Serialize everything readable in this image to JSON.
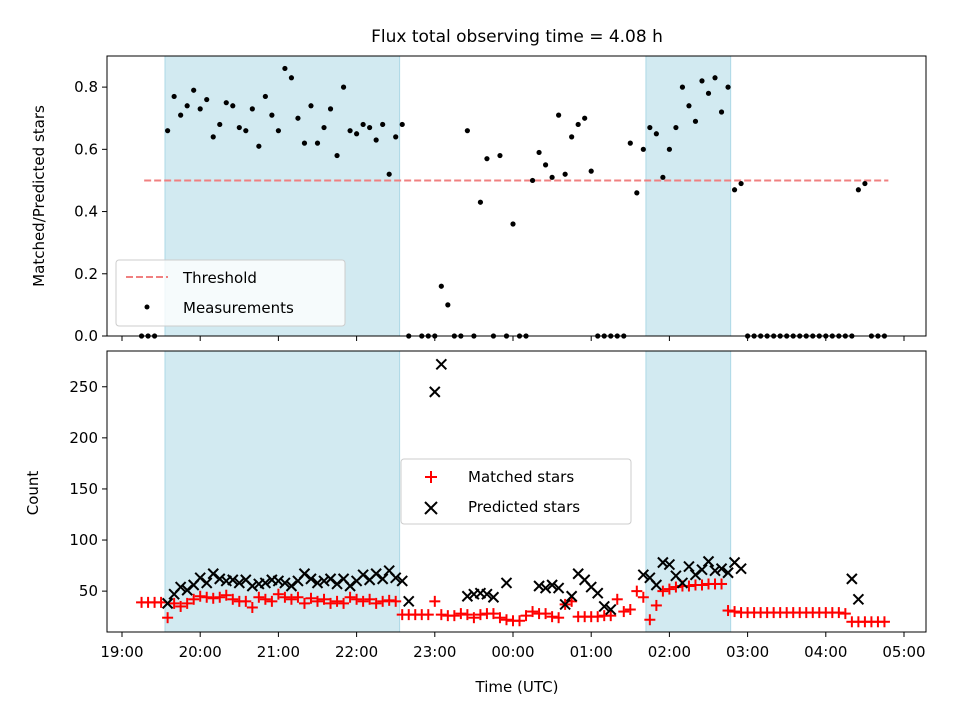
{
  "title": "Flux total observing time = 4.08 h",
  "colors": {
    "threshold": "#f08080",
    "matched": "#ff0000",
    "predicted": "#000000",
    "measurements": "#000000",
    "shade": "#add8e6"
  },
  "chart_data": [
    {
      "type": "scatter",
      "ylabel": "Matched/Predicted stars",
      "ylim": [
        0,
        0.9
      ],
      "xlim": [
        "19:00",
        "05:00"
      ],
      "yticks": [
        "0.0",
        "0.2",
        "0.4",
        "0.6",
        "0.8"
      ],
      "grid": false,
      "legend_position": "lower-left",
      "shaded_intervals": [
        [
          "19:33",
          "22:33"
        ],
        [
          "01:42",
          "02:47"
        ]
      ],
      "threshold": {
        "name": "Threshold",
        "value": 0.5,
        "x_start": "19:17",
        "x_end": "04:48"
      },
      "series": [
        {
          "name": "Measurements",
          "x": [
            "19:15",
            "19:20",
            "19:25",
            "19:35",
            "19:40",
            "19:45",
            "19:50",
            "19:55",
            "20:00",
            "20:05",
            "20:10",
            "20:15",
            "20:20",
            "20:25",
            "20:30",
            "20:35",
            "20:40",
            "20:45",
            "20:50",
            "20:55",
            "21:00",
            "21:05",
            "21:10",
            "21:15",
            "21:20",
            "21:25",
            "21:30",
            "21:35",
            "21:40",
            "21:45",
            "21:50",
            "21:55",
            "22:00",
            "22:05",
            "22:10",
            "22:15",
            "22:20",
            "22:25",
            "22:30",
            "22:35",
            "22:40",
            "22:50",
            "22:55",
            "23:00",
            "23:05",
            "23:10",
            "23:15",
            "23:20",
            "23:25",
            "23:30",
            "23:35",
            "23:40",
            "23:45",
            "23:50",
            "23:55",
            "00:00",
            "00:05",
            "00:10",
            "00:15",
            "00:20",
            "00:25",
            "00:30",
            "00:35",
            "00:40",
            "00:45",
            "00:50",
            "00:55",
            "01:00",
            "01:05",
            "01:10",
            "01:15",
            "01:20",
            "01:25",
            "01:30",
            "01:35",
            "01:40",
            "01:45",
            "01:50",
            "01:55",
            "02:00",
            "02:05",
            "02:10",
            "02:15",
            "02:20",
            "02:25",
            "02:30",
            "02:35",
            "02:40",
            "02:45",
            "02:50",
            "02:55",
            "03:00",
            "03:05",
            "03:10",
            "03:15",
            "03:20",
            "03:25",
            "03:30",
            "03:35",
            "03:40",
            "03:45",
            "03:50",
            "03:55",
            "04:00",
            "04:05",
            "04:10",
            "04:15",
            "04:20",
            "04:25",
            "04:30",
            "04:35",
            "04:40",
            "04:45"
          ],
          "y": [
            0,
            0,
            0,
            0.66,
            0.77,
            0.71,
            0.74,
            0.79,
            0.73,
            0.76,
            0.64,
            0.68,
            0.75,
            0.74,
            0.67,
            0.66,
            0.73,
            0.61,
            0.77,
            0.71,
            0.66,
            0.86,
            0.83,
            0.7,
            0.62,
            0.74,
            0.62,
            0.67,
            0.73,
            0.58,
            0.8,
            0.66,
            0.65,
            0.68,
            0.67,
            0.63,
            0.68,
            0.52,
            0.64,
            0.68,
            0,
            0,
            0,
            0,
            0.16,
            0.1,
            0,
            0,
            0.66,
            0,
            0.43,
            0.57,
            0,
            0.58,
            0,
            0.36,
            0,
            0,
            0.5,
            0.59,
            0.55,
            0.51,
            0.71,
            0.52,
            0.64,
            0.68,
            0.7,
            0.53,
            0,
            0,
            0,
            0,
            0,
            0.62,
            0.46,
            0.6,
            0.67,
            0.65,
            0.51,
            0.6,
            0.67,
            0.8,
            0.74,
            0.69,
            0.82,
            0.78,
            0.83,
            0.72,
            0.8,
            0.47,
            0.49,
            0,
            0,
            0,
            0,
            0,
            0,
            0,
            0,
            0,
            0,
            0,
            0,
            0,
            0,
            0,
            0,
            0,
            0.47,
            0.49,
            0,
            0,
            0
          ]
        }
      ]
    },
    {
      "type": "scatter",
      "xlabel": "Time (UTC)",
      "ylabel": "Count",
      "ylim": [
        10,
        285
      ],
      "xlim": [
        "19:00",
        "05:00"
      ],
      "xticks": [
        "19:00",
        "20:00",
        "21:00",
        "22:00",
        "23:00",
        "00:00",
        "01:00",
        "02:00",
        "03:00",
        "04:00",
        "05:00"
      ],
      "yticks": [
        "50",
        "100",
        "150",
        "200",
        "250"
      ],
      "grid": false,
      "legend_position": "center",
      "shaded_intervals": [
        [
          "19:33",
          "22:33"
        ],
        [
          "01:42",
          "02:47"
        ]
      ],
      "series": [
        {
          "name": "Matched stars",
          "x": [
            "19:15",
            "19:20",
            "19:25",
            "19:30",
            "19:35",
            "19:40",
            "19:45",
            "19:50",
            "19:55",
            "20:00",
            "20:05",
            "20:10",
            "20:15",
            "20:20",
            "20:25",
            "20:30",
            "20:35",
            "20:40",
            "20:45",
            "20:50",
            "20:55",
            "21:00",
            "21:05",
            "21:10",
            "21:15",
            "21:20",
            "21:25",
            "21:30",
            "21:35",
            "21:40",
            "21:45",
            "21:50",
            "21:55",
            "22:00",
            "22:05",
            "22:10",
            "22:15",
            "22:20",
            "22:25",
            "22:30",
            "22:35",
            "22:40",
            "22:45",
            "22:50",
            "22:55",
            "23:00",
            "23:05",
            "23:10",
            "23:15",
            "23:20",
            "23:25",
            "23:30",
            "23:35",
            "23:40",
            "23:45",
            "23:50",
            "23:55",
            "00:00",
            "00:05",
            "00:10",
            "00:15",
            "00:20",
            "00:25",
            "00:30",
            "00:35",
            "00:40",
            "00:45",
            "00:50",
            "00:55",
            "01:00",
            "01:05",
            "01:10",
            "01:15",
            "01:20",
            "01:25",
            "01:30",
            "01:35",
            "01:40",
            "01:45",
            "01:50",
            "01:55",
            "02:00",
            "02:05",
            "02:10",
            "02:15",
            "02:20",
            "02:25",
            "02:30",
            "02:35",
            "02:40",
            "02:45",
            "02:50",
            "02:55",
            "03:00",
            "03:05",
            "03:10",
            "03:15",
            "03:20",
            "03:25",
            "03:30",
            "03:35",
            "03:40",
            "03:45",
            "03:50",
            "03:55",
            "04:00",
            "04:05",
            "04:10",
            "04:15",
            "04:20",
            "04:25",
            "04:30",
            "04:35",
            "04:40",
            "04:45"
          ],
          "y": [
            39,
            39,
            39,
            39,
            24,
            38,
            35,
            38,
            42,
            45,
            44,
            43,
            44,
            46,
            42,
            40,
            40,
            34,
            44,
            42,
            40,
            47,
            44,
            42,
            44,
            38,
            43,
            40,
            42,
            38,
            40,
            38,
            44,
            42,
            40,
            42,
            38,
            40,
            41,
            40,
            27,
            27,
            27,
            27,
            27,
            40,
            27,
            26,
            26,
            28,
            27,
            24,
            27,
            28,
            28,
            24,
            22,
            21,
            21,
            26,
            30,
            28,
            28,
            25,
            24,
            37,
            40,
            25,
            25,
            25,
            25,
            26,
            26,
            42,
            30,
            32,
            50,
            44,
            22,
            36,
            50,
            52,
            54,
            55,
            55,
            56,
            56,
            57,
            57,
            57,
            31,
            30,
            29,
            29,
            29,
            29,
            29,
            29,
            29,
            29,
            29,
            29,
            29,
            29,
            29,
            29,
            29,
            29,
            28,
            20,
            20,
            20,
            20,
            20,
            20
          ]
        },
        {
          "name": "Predicted stars",
          "x": [
            "19:35",
            "19:40",
            "19:45",
            "19:50",
            "19:55",
            "20:00",
            "20:05",
            "20:10",
            "20:15",
            "20:20",
            "20:25",
            "20:30",
            "20:35",
            "20:40",
            "20:45",
            "20:50",
            "20:55",
            "21:00",
            "21:05",
            "21:10",
            "21:15",
            "21:20",
            "21:25",
            "21:30",
            "21:35",
            "21:40",
            "21:45",
            "21:50",
            "21:55",
            "22:00",
            "22:05",
            "22:10",
            "22:15",
            "22:20",
            "22:25",
            "22:30",
            "22:35",
            "22:40",
            "23:00",
            "23:05",
            "23:25",
            "23:30",
            "23:35",
            "23:40",
            "23:45",
            "23:55",
            "00:20",
            "00:25",
            "00:30",
            "00:35",
            "00:40",
            "00:45",
            "00:50",
            "00:55",
            "01:00",
            "01:05",
            "01:10",
            "01:15",
            "01:40",
            "01:45",
            "01:50",
            "01:55",
            "02:00",
            "02:05",
            "02:10",
            "02:15",
            "02:20",
            "02:25",
            "02:30",
            "02:35",
            "02:40",
            "02:45",
            "02:50",
            "02:55",
            "04:20",
            "04:25"
          ],
          "y": [
            38,
            47,
            54,
            51,
            56,
            63,
            58,
            67,
            62,
            60,
            61,
            58,
            61,
            55,
            57,
            58,
            61,
            60,
            58,
            55,
            60,
            67,
            62,
            58,
            60,
            62,
            57,
            62,
            55,
            60,
            66,
            61,
            67,
            62,
            70,
            63,
            60,
            40,
            245,
            272,
            45,
            47,
            48,
            47,
            44,
            58,
            55,
            53,
            56,
            53,
            37,
            45,
            67,
            61,
            54,
            48,
            35,
            32,
            66,
            63,
            56,
            78,
            76,
            65,
            58,
            74,
            66,
            71,
            79,
            70,
            72,
            68,
            78,
            72,
            62,
            42
          ]
        }
      ]
    }
  ]
}
